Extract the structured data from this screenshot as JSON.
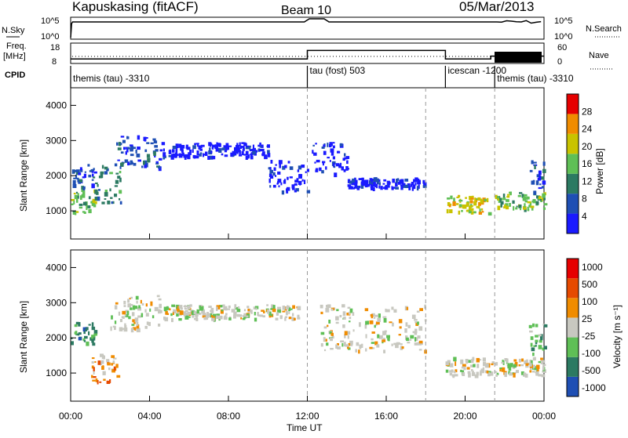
{
  "header": {
    "station": "Kapuskasing (fitACF)",
    "beam": "Beam 10",
    "date": "05/Mar/2013"
  },
  "top_panels": {
    "nsky_label": "N.Sky",
    "nsky_ticks": [
      "10^5",
      "10^0"
    ],
    "nsearch_label": "N.Search",
    "nsearch_ticks": [
      "10^5",
      "10^0"
    ],
    "freq_label": "Freq.",
    "freq_unit": "[MHz]",
    "freq_ticks": [
      "18",
      "8"
    ],
    "nave_label": "Nave",
    "nave_ticks": [
      "60",
      "0"
    ],
    "cpid_label": "CPID",
    "modes": [
      {
        "label": "themis (tau) -3310",
        "start_h": 0.0
      },
      {
        "label": "tau (fost) 503",
        "start_h": 12.0
      },
      {
        "label": "icescan -1200",
        "start_h": 19.0
      },
      {
        "label": "themis (tau) -3310",
        "start_h": 21.5
      }
    ],
    "freq_steps": [
      {
        "from_h": 0,
        "to_h": 12.0,
        "mhz": 10.0
      },
      {
        "from_h": 12.0,
        "to_h": 19.0,
        "mhz": 14.5
      },
      {
        "from_h": 19.0,
        "to_h": 21.3,
        "mhz": 10.0
      },
      {
        "from_h": 21.3,
        "to_h": 24.0,
        "mhz": 11.5
      }
    ]
  },
  "chart_data": [
    {
      "type": "heatmap",
      "name": "power",
      "ylabel": "Slant Range [km]",
      "y_ticks": [
        1000,
        2000,
        3000,
        4000
      ],
      "ylim": [
        200,
        4500
      ],
      "xlim": [
        0,
        24
      ],
      "colorbar_label": "Power [dB]",
      "colorbar_ticks": [
        "4",
        "8",
        "12",
        "16",
        "20",
        "24",
        "28"
      ],
      "colorbar_colors": [
        "#1a1aff",
        "#1f4fb4",
        "#2c7a62",
        "#5fbf56",
        "#c9c300",
        "#f08c00",
        "#e60000"
      ],
      "regions": [
        {
          "x0": 0.0,
          "x1": 1.2,
          "y0": 900,
          "y1": 1600,
          "level": 3
        },
        {
          "x0": 0.0,
          "x1": 1.2,
          "y0": 1600,
          "y1": 2300,
          "level": 1
        },
        {
          "x0": 1.2,
          "x1": 2.5,
          "y0": 1200,
          "y1": 2300,
          "level": 2
        },
        {
          "x0": 2.2,
          "x1": 4.5,
          "y0": 2200,
          "y1": 3100,
          "level": 1
        },
        {
          "x0": 4.5,
          "x1": 10.0,
          "y0": 2500,
          "y1": 2900,
          "level": 0
        },
        {
          "x0": 10.0,
          "x1": 12.0,
          "y0": 1500,
          "y1": 2400,
          "level": 0
        },
        {
          "x0": 12.2,
          "x1": 14.0,
          "y0": 2000,
          "y1": 2900,
          "level": 0
        },
        {
          "x0": 14.0,
          "x1": 18.0,
          "y0": 1600,
          "y1": 1900,
          "level": 0
        },
        {
          "x0": 19.0,
          "x1": 21.2,
          "y0": 900,
          "y1": 1400,
          "level": 4
        },
        {
          "x0": 21.5,
          "x1": 24.0,
          "y0": 1000,
          "y1": 1500,
          "level": 3
        },
        {
          "x0": 23.2,
          "x1": 24.0,
          "y0": 1500,
          "y1": 2400,
          "level": 1
        }
      ]
    },
    {
      "type": "heatmap",
      "name": "velocity",
      "ylabel": "Slant Range [km]",
      "y_ticks": [
        1000,
        2000,
        3000,
        4000
      ],
      "ylim": [
        200,
        4500
      ],
      "xlim": [
        0,
        24
      ],
      "x_ticks": [
        "00:00",
        "04:00",
        "08:00",
        "12:00",
        "16:00",
        "20:00",
        "00:00"
      ],
      "xlabel": "Time UT",
      "colorbar_label": "Velocity [m s⁻¹]",
      "colorbar_ticks": [
        "1000",
        "500",
        "100",
        "25",
        "-25",
        "-100",
        "-500",
        "-1000"
      ],
      "colorbar_colors": [
        "#1f4fb4",
        "#2c7a62",
        "#5fbf56",
        "#c8c8c0",
        "#f08c00",
        "#e64a00",
        "#e60000"
      ],
      "regions": [
        {
          "x0": 0.0,
          "x1": 1.2,
          "y0": 1800,
          "y1": 2400,
          "level": 1
        },
        {
          "x0": 1.0,
          "x1": 2.4,
          "y0": 700,
          "y1": 1500,
          "level": 4
        },
        {
          "x0": 2.0,
          "x1": 4.5,
          "y0": 2200,
          "y1": 3200,
          "level": 3
        },
        {
          "x0": 4.5,
          "x1": 11.5,
          "y0": 2500,
          "y1": 2900,
          "level": 3
        },
        {
          "x0": 12.5,
          "x1": 18.0,
          "y0": 1600,
          "y1": 2900,
          "level": 3
        },
        {
          "x0": 19.0,
          "x1": 24.0,
          "y0": 900,
          "y1": 1400,
          "level": 3
        },
        {
          "x0": 23.2,
          "x1": 24.0,
          "y0": 1500,
          "y1": 2400,
          "level": 2
        }
      ]
    }
  ]
}
